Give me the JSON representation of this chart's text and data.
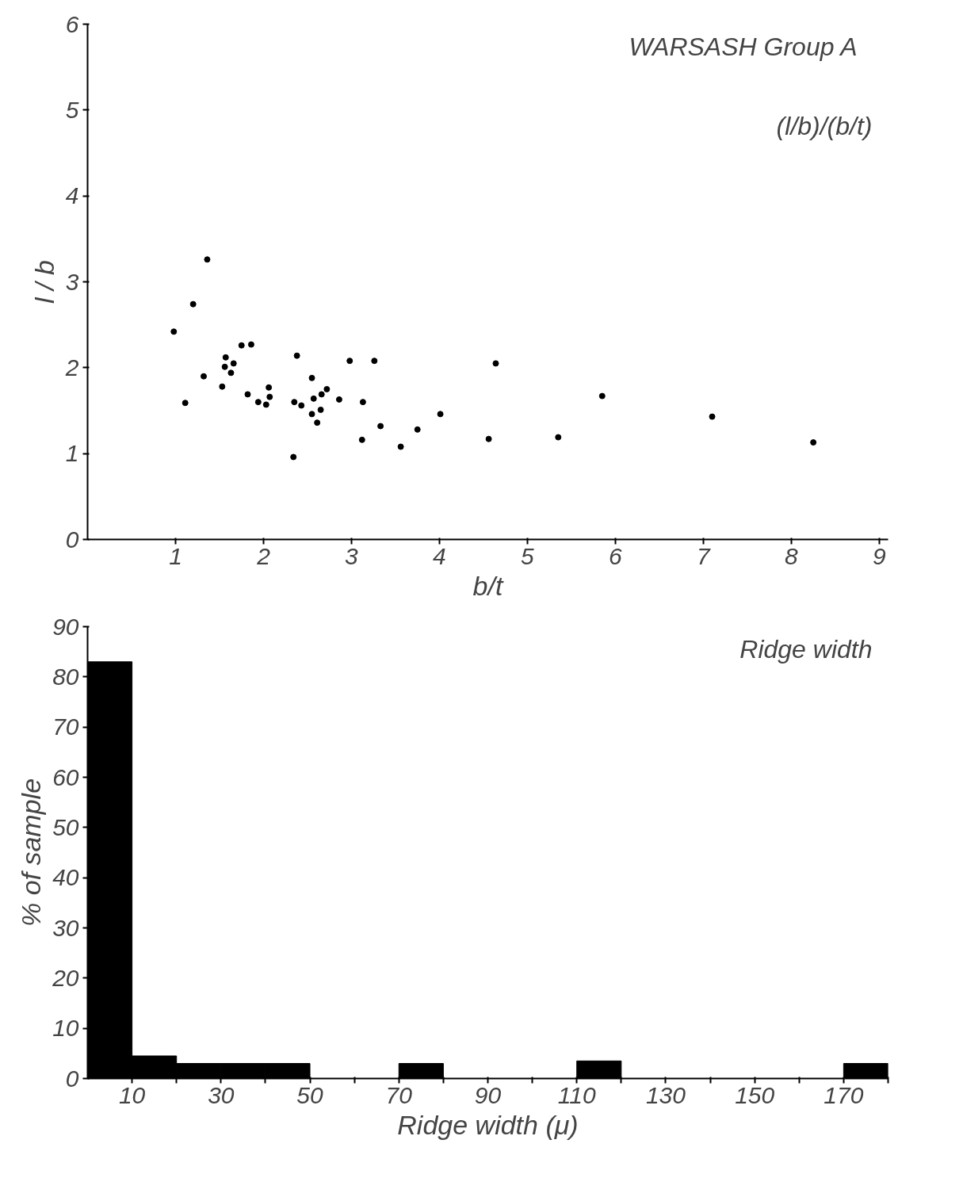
{
  "chart_data": [
    {
      "type": "scatter",
      "title": "WARSASH   Group A",
      "subtitle": "(l/b)/(b/t)",
      "xlabel": "b/t",
      "ylabel": "l / b",
      "x": [
        1.36,
        1.2,
        0.98,
        1.75,
        1.86,
        1.57,
        1.66,
        1.56,
        1.63,
        1.32,
        1.53,
        1.11,
        1.82,
        2.06,
        2.07,
        1.94,
        2.03,
        2.38,
        2.98,
        3.26,
        2.55,
        2.72,
        2.66,
        2.57,
        2.86,
        3.13,
        2.35,
        2.43,
        2.65,
        2.55,
        2.61,
        4.01,
        3.33,
        3.75,
        3.12,
        3.56,
        2.34,
        4.64,
        5.85,
        7.1,
        4.56,
        5.35,
        8.25
      ],
      "values": [
        3.26,
        2.74,
        2.42,
        2.26,
        2.27,
        2.12,
        2.05,
        2.01,
        1.94,
        1.9,
        1.78,
        1.59,
        1.69,
        1.77,
        1.66,
        1.6,
        1.57,
        2.14,
        2.08,
        2.08,
        1.88,
        1.75,
        1.69,
        1.64,
        1.63,
        1.6,
        1.6,
        1.56,
        1.51,
        1.46,
        1.36,
        1.46,
        1.32,
        1.28,
        1.16,
        1.08,
        0.96,
        2.05,
        1.67,
        1.43,
        1.17,
        1.19,
        1.13
      ],
      "color": "#000000",
      "marker": "circle",
      "xlim": [
        0,
        9.1
      ],
      "ylim": [
        0,
        6
      ],
      "xticks": [
        1,
        2,
        3,
        4,
        5,
        6,
        7,
        8,
        9
      ],
      "yticks": [
        0,
        1,
        2,
        3,
        4,
        5,
        6
      ],
      "grid": false
    },
    {
      "type": "histogram",
      "title": "Ridge width",
      "xlabel": "Ridge width (μ)",
      "ylabel": "% of sample",
      "bins": [
        0,
        10,
        20,
        30,
        40,
        50,
        60,
        70,
        80,
        90,
        100,
        110,
        120,
        130,
        140,
        150,
        160,
        170,
        180
      ],
      "values": [
        83,
        4.5,
        3,
        3,
        3,
        0,
        0,
        3,
        0,
        0,
        0,
        3.5,
        0,
        0,
        0,
        0,
        0,
        3
      ],
      "color": "#000000",
      "xlim": [
        0,
        180
      ],
      "ylim": [
        0,
        90
      ],
      "xticks": [
        {
          "value": 10,
          "label": "10"
        },
        {
          "value": 20,
          "label": null
        },
        {
          "value": 30,
          "label": "30"
        },
        {
          "value": 40,
          "label": null
        },
        {
          "value": 50,
          "label": "50"
        },
        {
          "value": 60,
          "label": null
        },
        {
          "value": 70,
          "label": "70"
        },
        {
          "value": 80,
          "label": null
        },
        {
          "value": 90,
          "label": "90"
        },
        {
          "value": 100,
          "label": null
        },
        {
          "value": 110,
          "label": "110"
        },
        {
          "value": 120,
          "label": null
        },
        {
          "value": 130,
          "label": "130"
        },
        {
          "value": 140,
          "label": null
        },
        {
          "value": 150,
          "label": "150"
        },
        {
          "value": 160,
          "label": null
        },
        {
          "value": 170,
          "label": "170"
        },
        {
          "value": 180,
          "label": null
        }
      ],
      "yticks": [
        0,
        10,
        20,
        30,
        40,
        50,
        60,
        70,
        80,
        90
      ],
      "grid": false
    }
  ]
}
